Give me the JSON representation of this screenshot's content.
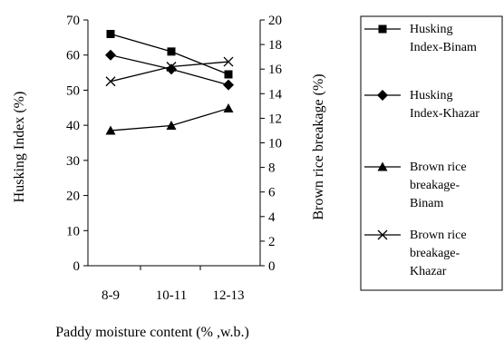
{
  "chart_data": {
    "type": "line",
    "title": "",
    "categories": [
      "8-9",
      "10-11",
      "12-13"
    ],
    "xlabel": "Paddy moisture content (% ,w.b.)",
    "ylabel": "Husking Index (%)",
    "y2label": "Brown rice breakage (%)",
    "ylim": [
      0,
      70
    ],
    "y2lim": [
      0,
      20
    ],
    "yticks": [
      0,
      10,
      20,
      30,
      40,
      50,
      60,
      70
    ],
    "y2ticks": [
      0,
      2,
      4,
      6,
      8,
      10,
      12,
      14,
      16,
      18,
      20
    ],
    "grid": false,
    "legend_position": "right",
    "series": [
      {
        "name": "Husking Index-Binam",
        "legend": [
          "Husking",
          "Index-Binam"
        ],
        "axis": "left",
        "marker": "square",
        "values": [
          66,
          61,
          54.5
        ]
      },
      {
        "name": "Husking Index-Khazar",
        "legend": [
          "Husking",
          "Index-Khazar"
        ],
        "axis": "left",
        "marker": "diamond",
        "values": [
          60,
          56,
          51.5
        ]
      },
      {
        "name": "Brown rice breakage-Binam",
        "legend": [
          "Brown rice",
          "breakage-",
          "Binam"
        ],
        "axis": "right",
        "marker": "triangle",
        "values": [
          11,
          11.4,
          12.8
        ]
      },
      {
        "name": "Brown rice breakage-Khazar",
        "legend": [
          "Brown rice",
          "breakage-",
          "Khazar"
        ],
        "axis": "right",
        "marker": "x",
        "values": [
          15,
          16.2,
          16.6
        ]
      }
    ]
  }
}
